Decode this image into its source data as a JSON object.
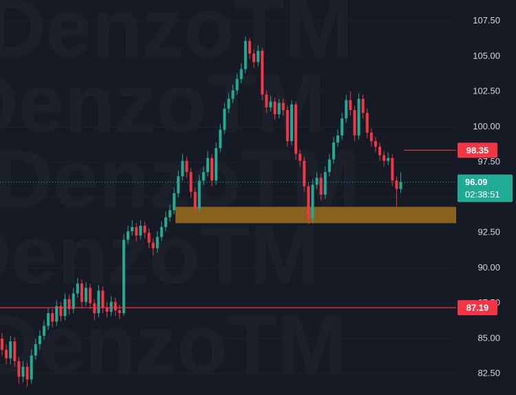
{
  "chart_data": {
    "type": "candlestick",
    "watermark": "DenzoTM",
    "open": [
      85.0,
      84.2,
      83.6,
      84.8,
      83.4,
      82.3,
      83.0,
      82.1,
      83.8,
      84.6,
      85.2,
      85.9,
      86.8,
      86.2,
      87.3,
      86.6,
      87.8,
      87.1,
      88.2,
      88.9,
      87.6,
      88.6,
      87.5,
      86.8,
      88.4,
      87.2,
      86.9,
      87.6,
      87.0,
      86.8,
      92.0,
      92.6,
      92.9,
      92.3,
      93.0,
      92.5,
      91.8,
      91.4,
      92.2,
      92.9,
      93.6,
      94.1,
      95.3,
      96.5,
      97.6,
      96.8,
      95.4,
      94.2,
      96.2,
      96.8,
      97.8,
      96.2,
      98.5,
      99.8,
      101.3,
      102.0,
      102.6,
      103.4,
      104.1,
      106.1,
      105.2,
      104.6,
      105.4,
      102.3,
      101.4,
      101.8,
      100.9,
      101.7,
      101.2,
      99.0,
      101.6,
      98.1,
      97.6,
      95.8,
      93.5,
      95.9,
      96.4,
      95.2,
      96.8,
      97.7,
      98.9,
      99.4,
      100.6,
      101.9,
      101.2,
      99.4,
      102.0,
      101.0,
      99.6,
      99.0,
      98.6,
      98.0,
      97.6,
      97.8,
      96.2,
      95.6
    ],
    "high": [
      85.4,
      84.6,
      85.2,
      85.1,
      83.7,
      83.4,
      83.3,
      84.2,
      85.0,
      85.6,
      86.3,
      87.2,
      87.1,
      87.7,
      87.6,
      88.2,
      88.1,
      88.6,
      89.3,
      89.2,
      89.0,
      88.9,
      87.8,
      88.8,
      88.7,
      87.6,
      88.0,
      87.9,
      87.4,
      92.4,
      93.0,
      93.4,
      93.2,
      93.4,
      93.3,
      92.8,
      92.1,
      92.6,
      93.3,
      94.0,
      94.5,
      95.7,
      96.9,
      98.1,
      97.9,
      97.1,
      95.7,
      96.6,
      97.2,
      98.3,
      98.1,
      98.9,
      100.2,
      101.7,
      102.4,
      103.0,
      103.8,
      104.5,
      106.4,
      106.3,
      105.5,
      105.8,
      105.6,
      102.6,
      102.2,
      102.1,
      102.0,
      102.0,
      101.5,
      101.9,
      101.8,
      98.4,
      97.9,
      96.1,
      96.3,
      96.8,
      96.7,
      97.2,
      98.1,
      99.3,
      99.8,
      101.0,
      102.3,
      102.5,
      101.5,
      102.4,
      102.3,
      101.3,
      99.9,
      99.3,
      98.9,
      98.3,
      98.2,
      98.1,
      96.5,
      96.8
    ],
    "low": [
      83.8,
      83.2,
      83.2,
      83.0,
      81.8,
      81.9,
      81.6,
      81.8,
      83.5,
      84.2,
      84.9,
      85.6,
      85.8,
      85.9,
      86.2,
      86.3,
      86.7,
      86.8,
      87.9,
      87.2,
      87.3,
      87.1,
      86.3,
      86.5,
      86.8,
      86.5,
      86.6,
      86.6,
      86.4,
      86.6,
      91.7,
      92.3,
      91.9,
      92.0,
      92.1,
      91.4,
      90.9,
      91.1,
      91.9,
      92.6,
      93.3,
      93.8,
      95.0,
      96.2,
      96.4,
      95.0,
      93.8,
      93.9,
      95.9,
      96.5,
      95.8,
      95.9,
      98.2,
      99.5,
      101.0,
      101.7,
      102.3,
      103.1,
      103.8,
      104.8,
      104.2,
      104.3,
      101.9,
      101.0,
      101.1,
      100.5,
      100.6,
      100.8,
      98.6,
      98.7,
      97.7,
      97.2,
      95.4,
      93.1,
      93.2,
      95.6,
      94.8,
      94.9,
      96.5,
      97.4,
      98.6,
      99.1,
      100.3,
      100.8,
      99.0,
      99.1,
      100.6,
      99.2,
      98.6,
      98.2,
      97.6,
      97.2,
      97.3,
      95.8,
      94.3,
      95.3
    ],
    "close": [
      84.2,
      83.6,
      84.8,
      83.4,
      82.3,
      83.0,
      82.1,
      83.8,
      84.6,
      85.2,
      85.9,
      86.8,
      86.2,
      87.3,
      86.6,
      87.8,
      87.1,
      88.2,
      88.9,
      87.6,
      88.6,
      87.5,
      86.8,
      88.4,
      87.2,
      86.9,
      87.6,
      87.0,
      86.8,
      92.0,
      92.6,
      92.9,
      92.3,
      93.0,
      92.5,
      91.8,
      91.4,
      92.2,
      92.9,
      93.6,
      94.1,
      95.3,
      96.5,
      97.6,
      96.8,
      95.4,
      94.2,
      96.2,
      96.8,
      97.8,
      96.2,
      98.5,
      99.8,
      101.3,
      102.0,
      102.6,
      103.4,
      104.1,
      106.1,
      105.2,
      104.6,
      105.4,
      102.3,
      101.4,
      101.8,
      100.9,
      101.7,
      101.2,
      99.0,
      101.6,
      98.1,
      97.6,
      95.8,
      93.5,
      95.9,
      96.4,
      95.2,
      96.8,
      97.7,
      98.9,
      99.4,
      100.6,
      101.9,
      101.2,
      99.4,
      102.0,
      101.0,
      99.6,
      99.0,
      98.6,
      98.0,
      97.6,
      97.8,
      96.2,
      95.6,
      96.09
    ],
    "up_color": "#22ab94",
    "down_color": "#f23645",
    "ylim": [
      81.0,
      109.0
    ],
    "yticks": [
      {
        "value": 82.5,
        "label": "82.50"
      },
      {
        "value": 85,
        "label": "85.00"
      },
      {
        "value": 87.5,
        "label": "87.50"
      },
      {
        "value": 90,
        "label": "90.00"
      },
      {
        "value": 92.5,
        "label": "92.50"
      },
      {
        "value": 95,
        "label": "95.00"
      },
      {
        "value": 97.5,
        "label": "97.50"
      },
      {
        "value": 100,
        "label": "100.00"
      },
      {
        "value": 102.5,
        "label": "102.50"
      },
      {
        "value": 105,
        "label": "105.00"
      },
      {
        "value": 107.5,
        "label": "107.50"
      }
    ],
    "price_lines": [
      {
        "value": 98.35,
        "color": "#f23645"
      },
      {
        "value": 87.19,
        "color": "#f23645"
      }
    ],
    "current_price": {
      "value": 96.09,
      "countdown": "02:38:51",
      "color": "#22ab94"
    },
    "zone": {
      "low": 93.18,
      "high": 94.34,
      "color": "#b07a1c"
    }
  }
}
